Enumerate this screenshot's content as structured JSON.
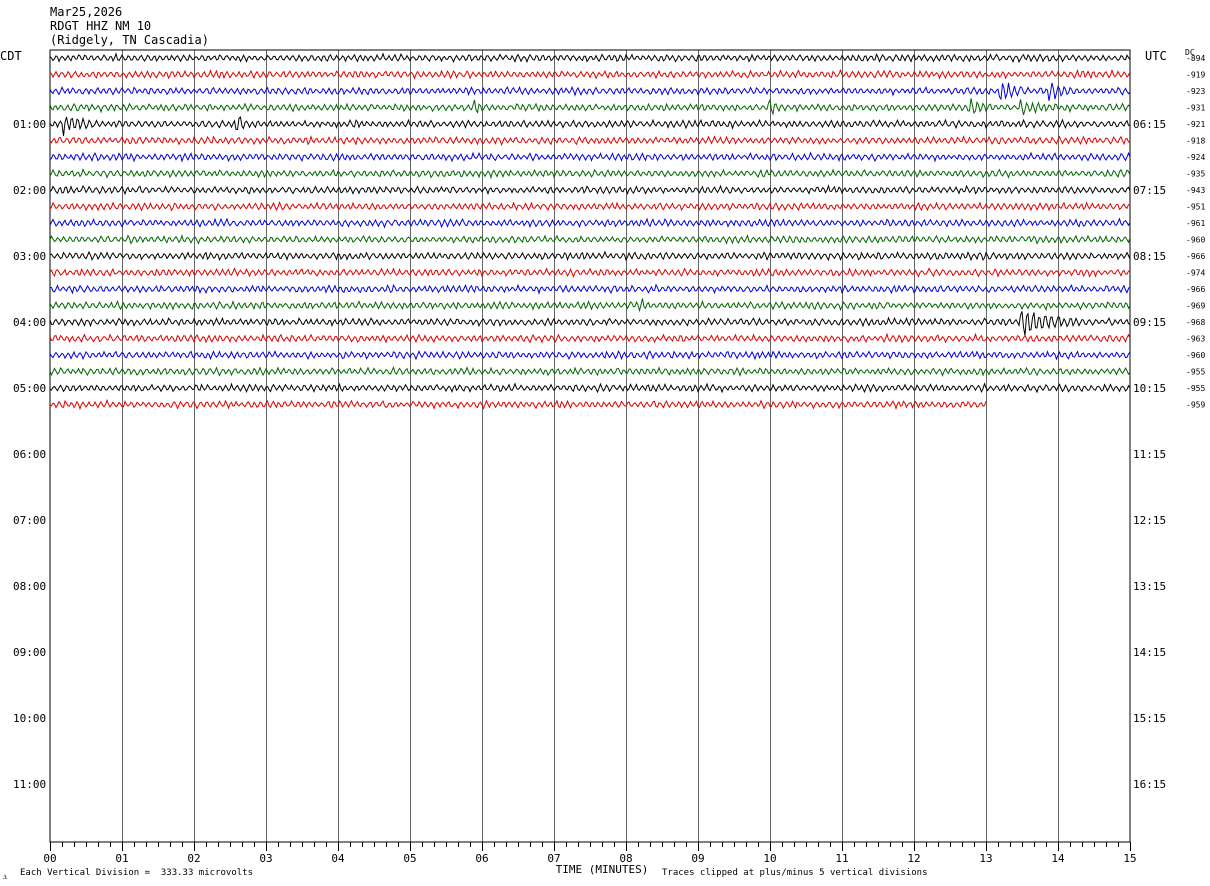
{
  "header": {
    "date": "Mar25,2026",
    "station": "RDGT HHZ NM 10",
    "location": "(Ridgely, TN Cascadia)"
  },
  "left_label": "CDT",
  "right_label": "UTC",
  "dc_label": "DC",
  "footer": {
    "scale_note": "Each Vertical Division =  333.33 microvolts",
    "clip_note": "Traces clipped at plus/minus 5 vertical divisions",
    "corner_mark": "⚓"
  },
  "colors": {
    "cycle": [
      "#000000",
      "#dd0000",
      "#0000dd",
      "#006600"
    ],
    "grid": "#000000"
  },
  "chart_data": {
    "type": "line",
    "title": "",
    "xlabel": "TIME (MINUTES)",
    "xlim": [
      0,
      15
    ],
    "x_ticks": [
      "00",
      "01",
      "02",
      "03",
      "04",
      "05",
      "06",
      "07",
      "08",
      "09",
      "10",
      "11",
      "12",
      "13",
      "14",
      "15"
    ],
    "rows_per_hour": 4,
    "row_minutes": 15,
    "total_rows": 48,
    "left_hour_labels": [
      "01:00",
      "02:00",
      "03:00",
      "04:00",
      "05:00",
      "06:00",
      "07:00",
      "08:00",
      "09:00",
      "10:00",
      "11:00"
    ],
    "right_hour_labels": [
      "06:15",
      "07:15",
      "08:15",
      "09:15",
      "10:15",
      "11:15",
      "12:15",
      "13:15",
      "14:15",
      "15:15",
      "16:15"
    ],
    "first_hour_row": 4,
    "traces": [
      {
        "row": 0,
        "dc": "-894",
        "end_minute": 15
      },
      {
        "row": 1,
        "dc": "-919",
        "end_minute": 15
      },
      {
        "row": 2,
        "dc": "-923",
        "end_minute": 15,
        "events": [
          {
            "minute": 13.2,
            "amp": 2.5,
            "dur": 0.35
          },
          {
            "minute": 13.9,
            "amp": 1.6,
            "dur": 0.4
          }
        ]
      },
      {
        "row": 3,
        "dc": "-931",
        "end_minute": 15,
        "events": [
          {
            "minute": 5.9,
            "amp": 1.4,
            "dur": 0.15
          },
          {
            "minute": 10.0,
            "amp": 1.5,
            "dur": 0.2
          },
          {
            "minute": 12.8,
            "amp": 1.8,
            "dur": 0.3
          },
          {
            "minute": 13.5,
            "amp": 1.4,
            "dur": 0.5
          }
        ]
      },
      {
        "row": 4,
        "dc": "-921",
        "end_minute": 15,
        "events": [
          {
            "minute": 0.2,
            "amp": 2.2,
            "dur": 0.45
          },
          {
            "minute": 2.6,
            "amp": 2.4,
            "dur": 0.12
          }
        ]
      },
      {
        "row": 5,
        "dc": "-918",
        "end_minute": 15
      },
      {
        "row": 6,
        "dc": "-924",
        "end_minute": 15
      },
      {
        "row": 7,
        "dc": "-935",
        "end_minute": 15
      },
      {
        "row": 8,
        "dc": "-943",
        "end_minute": 15
      },
      {
        "row": 9,
        "dc": "-951",
        "end_minute": 15
      },
      {
        "row": 10,
        "dc": "-961",
        "end_minute": 15
      },
      {
        "row": 11,
        "dc": "-960",
        "end_minute": 15
      },
      {
        "row": 12,
        "dc": "-966",
        "end_minute": 15
      },
      {
        "row": 13,
        "dc": "-974",
        "end_minute": 15
      },
      {
        "row": 14,
        "dc": "-966",
        "end_minute": 15
      },
      {
        "row": 15,
        "dc": "-969",
        "end_minute": 15,
        "events": [
          {
            "minute": 8.2,
            "amp": 1.4,
            "dur": 0.15
          }
        ]
      },
      {
        "row": 16,
        "dc": "-968",
        "end_minute": 15,
        "events": [
          {
            "minute": 13.5,
            "amp": 3.0,
            "dur": 0.9
          }
        ]
      },
      {
        "row": 17,
        "dc": "-963",
        "end_minute": 15
      },
      {
        "row": 18,
        "dc": "-960",
        "end_minute": 15
      },
      {
        "row": 19,
        "dc": "-955",
        "end_minute": 15
      },
      {
        "row": 20,
        "dc": "-955",
        "end_minute": 15
      },
      {
        "row": 21,
        "dc": "-959",
        "end_minute": 13
      }
    ]
  }
}
